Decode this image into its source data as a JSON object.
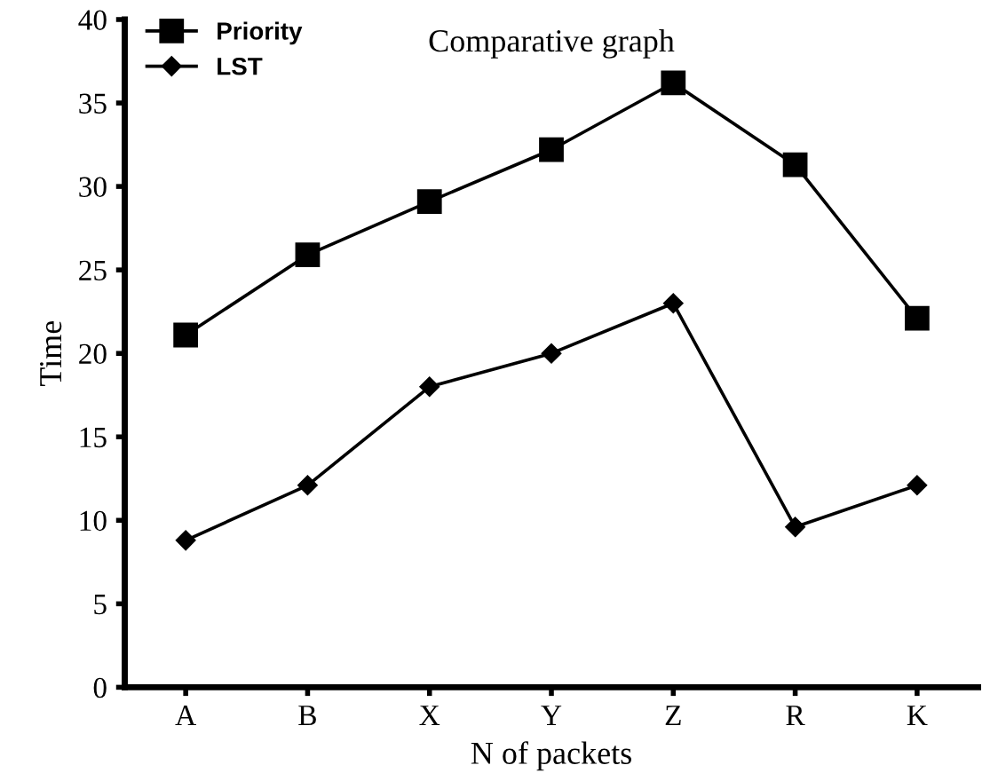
{
  "chart_data": {
    "type": "line",
    "title": "Comparative graph",
    "xlabel": "N of packets",
    "ylabel": "Time",
    "categories": [
      "A",
      "B",
      "X",
      "Y",
      "Z",
      "R",
      "K"
    ],
    "series": [
      {
        "name": "Priority",
        "color": "#000000",
        "marker": "square",
        "values": [
          21.1,
          25.9,
          29.1,
          32.2,
          36.2,
          31.3,
          22.1
        ]
      },
      {
        "name": "LST",
        "color": "#000000",
        "marker": "diamond",
        "values": [
          8.8,
          12.1,
          18,
          20,
          23,
          9.6,
          12.1
        ]
      }
    ],
    "ylim": [
      0,
      40
    ],
    "yticks": [
      0,
      5,
      10,
      15,
      20,
      25,
      30,
      35,
      40
    ],
    "grid": false,
    "legend": "top left",
    "line_style": "solid"
  }
}
